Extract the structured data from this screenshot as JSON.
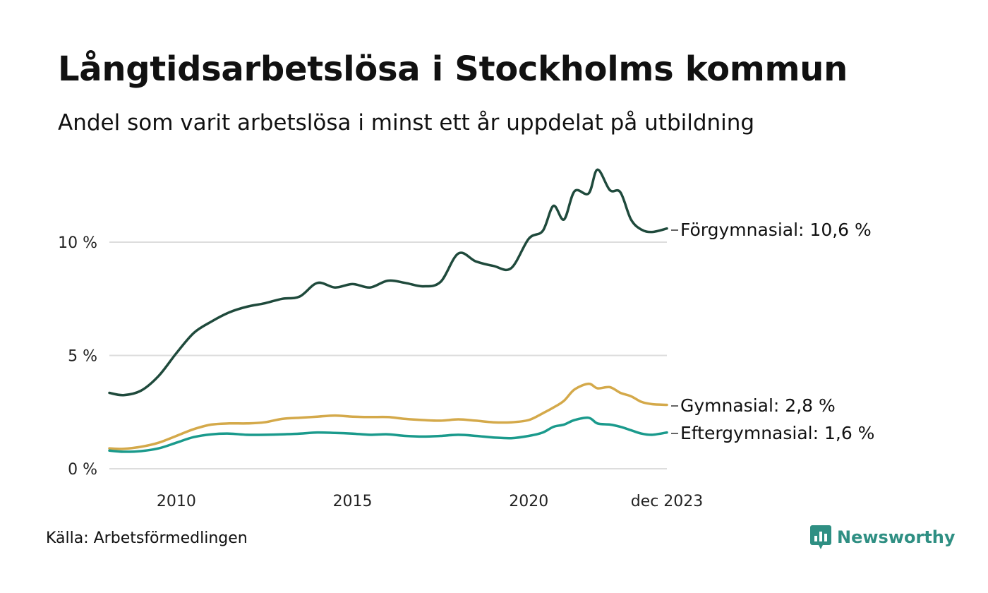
{
  "header": {
    "title": "Långtidsarbetslösa i Stockholms kommun",
    "subtitle": "Andel som varit arbetslösa i minst ett år uppdelat på utbildning"
  },
  "footer": {
    "source": "Källa: Arbetsförmedlingen",
    "brand": "Newsworthy"
  },
  "colors": {
    "forgymnasial": "#1f4a3c",
    "gymnasial": "#d4a94a",
    "eftergymnasial": "#1a9a8c",
    "grid": "#dddddd",
    "brand": "#2f8f83"
  },
  "chart_data": {
    "type": "line",
    "title": "Långtidsarbetslösa i Stockholms kommun",
    "subtitle": "Andel som varit arbetslösa i minst ett år uppdelat på utbildning",
    "xlabel": "",
    "ylabel": "",
    "xlim": [
      2008.1,
      2023.92
    ],
    "ylim": [
      0,
      14
    ],
    "y_ticks": [
      0,
      5,
      10
    ],
    "y_tick_labels": [
      "0 %",
      "5 %",
      "10 %"
    ],
    "x_ticks": [
      2010,
      2015,
      2020,
      2023.92
    ],
    "x_tick_labels": [
      "2010",
      "2015",
      "2020",
      "dec 2023"
    ],
    "grid": true,
    "legend": "end-of-line labels",
    "series": [
      {
        "name": "Förgymnasial",
        "label": "Förgymnasial: 10,6 %",
        "color": "#1f4a3c",
        "x": [
          2008.1,
          2008.5,
          2009.0,
          2009.5,
          2010.0,
          2010.5,
          2011.0,
          2011.5,
          2012.0,
          2012.5,
          2013.0,
          2013.5,
          2014.0,
          2014.5,
          2015.0,
          2015.5,
          2016.0,
          2016.5,
          2017.0,
          2017.5,
          2018.0,
          2018.5,
          2019.0,
          2019.5,
          2020.0,
          2020.4,
          2020.7,
          2021.0,
          2021.3,
          2021.7,
          2021.95,
          2022.3,
          2022.6,
          2022.9,
          2023.2,
          2023.5,
          2023.92
        ],
        "y": [
          3.35,
          3.25,
          3.45,
          4.1,
          5.1,
          6.0,
          6.5,
          6.9,
          7.15,
          7.3,
          7.5,
          7.6,
          8.2,
          8.0,
          8.15,
          8.0,
          8.3,
          8.2,
          8.05,
          8.25,
          9.5,
          9.15,
          8.95,
          8.85,
          10.15,
          10.5,
          11.6,
          11.0,
          12.25,
          12.15,
          13.2,
          12.3,
          12.2,
          11.0,
          10.55,
          10.45,
          10.6
        ]
      },
      {
        "name": "Gymnasial",
        "label": "Gymnasial:  2,8 %",
        "color": "#d4a94a",
        "x": [
          2008.1,
          2008.5,
          2009.0,
          2009.5,
          2010.0,
          2010.5,
          2011.0,
          2011.5,
          2012.0,
          2012.5,
          2013.0,
          2013.5,
          2014.0,
          2014.5,
          2015.0,
          2015.5,
          2016.0,
          2016.5,
          2017.0,
          2017.5,
          2018.0,
          2018.5,
          2019.0,
          2019.5,
          2020.0,
          2020.4,
          2020.7,
          2021.0,
          2021.3,
          2021.7,
          2021.95,
          2022.3,
          2022.6,
          2022.9,
          2023.2,
          2023.5,
          2023.92
        ],
        "y": [
          0.9,
          0.88,
          0.97,
          1.15,
          1.45,
          1.75,
          1.95,
          2.0,
          2.0,
          2.05,
          2.2,
          2.25,
          2.3,
          2.35,
          2.3,
          2.28,
          2.28,
          2.2,
          2.15,
          2.12,
          2.18,
          2.12,
          2.05,
          2.05,
          2.15,
          2.45,
          2.7,
          3.0,
          3.5,
          3.75,
          3.55,
          3.6,
          3.35,
          3.2,
          2.95,
          2.85,
          2.82
        ]
      },
      {
        "name": "Eftergymnasial",
        "label": "Eftergymnasial:  1,6 %",
        "color": "#1a9a8c",
        "x": [
          2008.1,
          2008.5,
          2009.0,
          2009.5,
          2010.0,
          2010.5,
          2011.0,
          2011.5,
          2012.0,
          2012.5,
          2013.0,
          2013.5,
          2014.0,
          2014.5,
          2015.0,
          2015.5,
          2016.0,
          2016.5,
          2017.0,
          2017.5,
          2018.0,
          2018.5,
          2019.0,
          2019.5,
          2020.0,
          2020.4,
          2020.7,
          2021.0,
          2021.3,
          2021.7,
          2021.95,
          2022.3,
          2022.6,
          2022.9,
          2023.2,
          2023.5,
          2023.92
        ],
        "y": [
          0.8,
          0.75,
          0.78,
          0.9,
          1.15,
          1.4,
          1.52,
          1.55,
          1.5,
          1.5,
          1.52,
          1.55,
          1.6,
          1.58,
          1.55,
          1.5,
          1.52,
          1.45,
          1.42,
          1.45,
          1.5,
          1.45,
          1.38,
          1.35,
          1.45,
          1.6,
          1.85,
          1.95,
          2.15,
          2.25,
          2.0,
          1.95,
          1.85,
          1.7,
          1.55,
          1.5,
          1.6
        ]
      }
    ]
  }
}
